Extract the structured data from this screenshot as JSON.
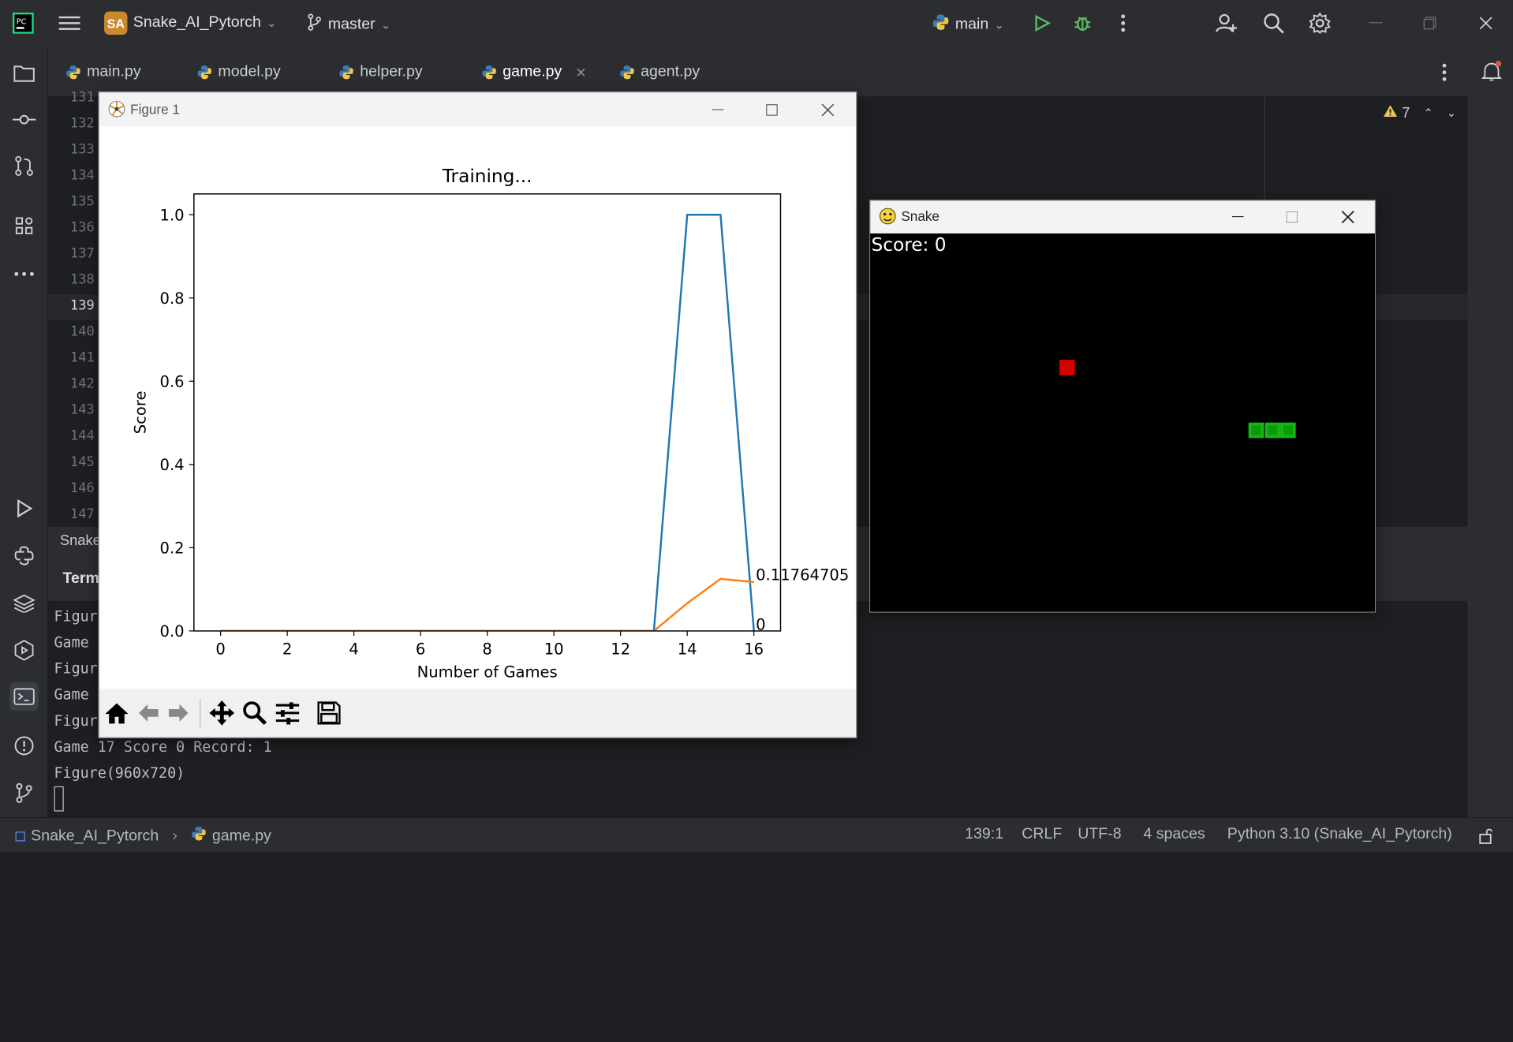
{
  "titlebar": {
    "project_badge": "SA",
    "project_name": "Snake_AI_Pytorch",
    "branch": "master",
    "run_config": "main"
  },
  "tabs": [
    {
      "label": "main.py"
    },
    {
      "label": "model.py"
    },
    {
      "label": "helper.py"
    },
    {
      "label": "game.py",
      "active": true
    },
    {
      "label": "agent.py"
    }
  ],
  "editor": {
    "line_numbers": [
      "131",
      "132",
      "133",
      "134",
      "135",
      "136",
      "137",
      "138",
      "139",
      "140",
      "141",
      "142",
      "143",
      "144",
      "145",
      "146",
      "147"
    ],
    "warning_count": "7"
  },
  "bottom": {
    "run_tab_partial": "Snake",
    "terminal_tab_partial": "Term"
  },
  "terminal": {
    "lines": [
      "Figur",
      "Game ",
      "Figur",
      "Game ",
      "Figur",
      "Game 17 Score 0 Record: 1",
      "Figure(960x720)"
    ]
  },
  "statusbar": {
    "project": "Snake_AI_Pytorch",
    "file": "game.py",
    "position": "139:1",
    "line_sep": "CRLF",
    "encoding": "UTF-8",
    "indent": "4 spaces",
    "interpreter": "Python 3.10 (Snake_AI_Pytorch)"
  },
  "figure_window": {
    "title": "Figure 1"
  },
  "chart_data": {
    "type": "line",
    "title": "Training...",
    "xlabel": "Number of Games",
    "ylabel": "Score",
    "xlim": [
      -0.8,
      16.8
    ],
    "ylim": [
      0,
      1.05
    ],
    "xticks": [
      "0",
      "2",
      "4",
      "6",
      "8",
      "10",
      "12",
      "14",
      "16"
    ],
    "yticks": [
      "0.0",
      "0.2",
      "0.4",
      "0.6",
      "0.8",
      "1.0"
    ],
    "series": [
      {
        "color": "#1f77b4",
        "x": [
          0,
          1,
          2,
          3,
          4,
          5,
          6,
          7,
          8,
          9,
          10,
          11,
          12,
          13,
          14,
          15,
          16
        ],
        "values": [
          0,
          0,
          0,
          0,
          0,
          0,
          0,
          0,
          0,
          0,
          0,
          0,
          0,
          0,
          1,
          1,
          0
        ]
      },
      {
        "color": "#ff7f0e",
        "x": [
          0,
          1,
          2,
          3,
          4,
          5,
          6,
          7,
          8,
          9,
          10,
          11,
          12,
          13,
          14,
          15,
          16
        ],
        "values": [
          0,
          0,
          0,
          0,
          0,
          0,
          0,
          0,
          0,
          0,
          0,
          0,
          0,
          0,
          0.0667,
          0.125,
          0.1176
        ]
      }
    ],
    "annotations": [
      "0.11764705",
      "0"
    ]
  },
  "snake_window": {
    "title": "Snake",
    "score_text": "Score: 0",
    "food_color": "#d40000",
    "snake_color": "#14b814"
  }
}
